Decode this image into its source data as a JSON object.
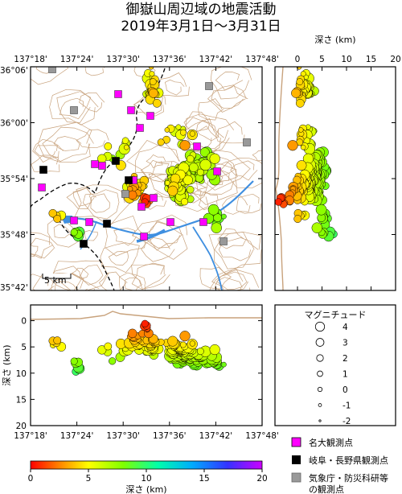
{
  "title_line1": "御嶽山周辺域の地震活動",
  "title_line2": "2019年3月1日～3月31日",
  "map": {
    "lon_ticks": [
      "137°18'",
      "137°24'",
      "137°30'",
      "137°36'",
      "137°42'",
      "137°48'"
    ],
    "lat_ticks": [
      "36°06'",
      "36°00'",
      "35°54'",
      "35°48'",
      "35°42'"
    ],
    "scale_label": "5 km"
  },
  "depth_axis": {
    "label_top": "深さ (km)",
    "label_side": "深さ (km)",
    "ticks": [
      "0",
      "5",
      "10",
      "15",
      "20"
    ]
  },
  "magnitude_legend": {
    "title": "マグニチュード",
    "levels": [
      "4",
      "3",
      "2",
      "1",
      "0",
      "-1",
      "-2"
    ]
  },
  "station_legend": [
    {
      "label": "名大観測点",
      "color": "#ff00ff"
    },
    {
      "label": "岐阜・長野県観測点",
      "color": "#000000"
    },
    {
      "label": "気象庁・防災科研等",
      "label2": "の観測点",
      "color": "#999999"
    }
  ],
  "colorbar": {
    "ticks": [
      "0",
      "5",
      "10",
      "15",
      "20"
    ],
    "label": "深さ (km)"
  },
  "colors": {
    "contour": "#c8a27c",
    "river": "#3f8fe0",
    "boundary": "#000000"
  }
}
